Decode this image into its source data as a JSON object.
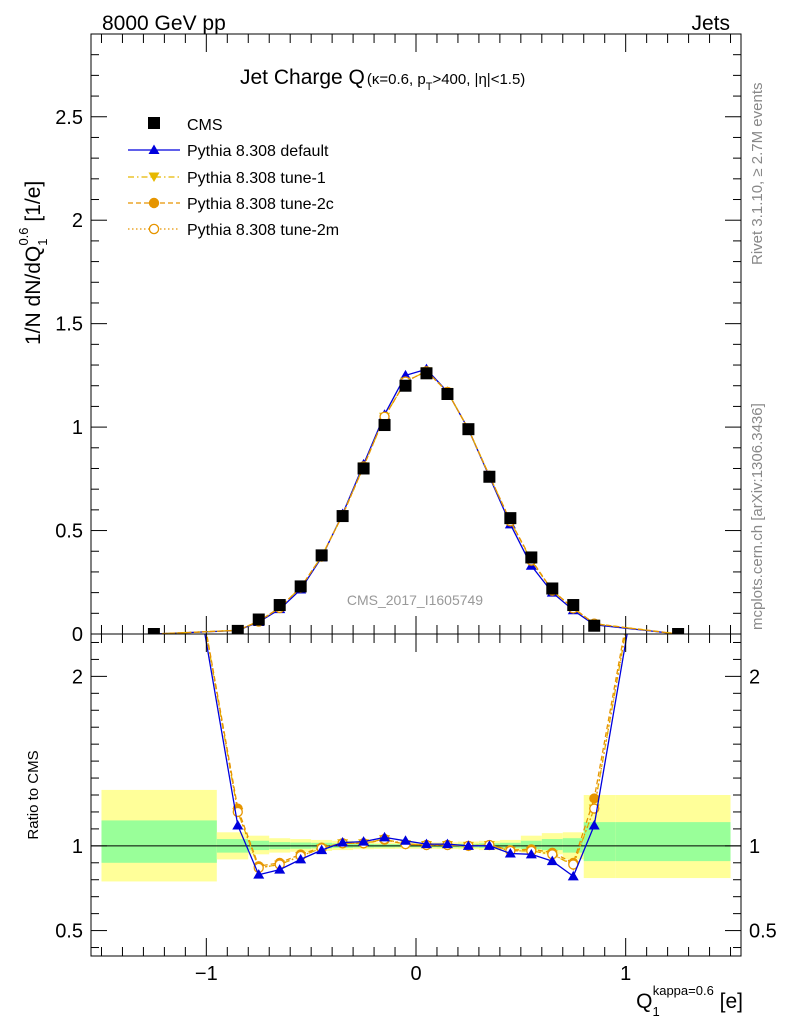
{
  "header": {
    "energy": "8000 GeV pp",
    "process": "Jets",
    "watermark": "CMS_2017_I1605749",
    "side_rivet": "Rivet 3.1.10, ≥ 2.7M events",
    "side_mcplots": "mcplots.cern.ch [arXiv:1306.3436]"
  },
  "chart_data": [
    {
      "type": "scatter",
      "title_main": "Jet Charge Q",
      "title_kappa": "(κ=0.6, p",
      "title_sub": "T",
      "title_rest": ">400, |η|<1.5)",
      "ylabel_main": "1/N dN/dQ",
      "ylabel_sub": "1",
      "ylabel_sup": "0.6",
      "ylabel_unit": " [1/e]",
      "xlim": [
        -1.55,
        1.55
      ],
      "ylim": [
        0,
        2.9
      ],
      "y_ticks": [
        "0",
        "0.5",
        "1",
        "1.5",
        "2",
        "2.5"
      ],
      "legend_position": "top-left",
      "x": [
        -1.25,
        -0.85,
        -0.75,
        -0.65,
        -0.55,
        -0.45,
        -0.35,
        -0.25,
        -0.15,
        -0.05,
        0.05,
        0.15,
        0.25,
        0.35,
        0.45,
        0.55,
        0.65,
        0.75,
        0.85,
        1.25
      ],
      "series": [
        {
          "name": "CMS",
          "color": "#000000",
          "marker": "square",
          "line": "none",
          "values": [
            0.0,
            0.015,
            0.07,
            0.14,
            0.23,
            0.38,
            0.57,
            0.8,
            1.01,
            1.2,
            1.26,
            1.16,
            0.99,
            0.76,
            0.56,
            0.37,
            0.22,
            0.14,
            0.04,
            0.0
          ]
        },
        {
          "name": "Pythia 8.308 default",
          "color": "#0000dd",
          "marker": "triangle-up",
          "line": "solid",
          "values": [
            0.0,
            0.017,
            0.058,
            0.12,
            0.215,
            0.37,
            0.58,
            0.82,
            1.06,
            1.25,
            1.28,
            1.17,
            0.99,
            0.76,
            0.53,
            0.33,
            0.2,
            0.115,
            0.045,
            0.0
          ]
        },
        {
          "name": "Pythia 8.308 tune-1",
          "color": "#e6b800",
          "marker": "triangle-down",
          "line": "dashdot",
          "values": [
            0.0,
            0.018,
            0.062,
            0.127,
            0.225,
            0.375,
            0.575,
            0.81,
            1.05,
            1.22,
            1.27,
            1.17,
            0.99,
            0.765,
            0.545,
            0.355,
            0.21,
            0.124,
            0.05,
            0.0
          ]
        },
        {
          "name": "Pythia 8.308 tune-2c",
          "color": "#e69500",
          "marker": "circle",
          "line": "dashed",
          "values": [
            0.0,
            0.018,
            0.062,
            0.127,
            0.225,
            0.375,
            0.575,
            0.81,
            1.05,
            1.22,
            1.27,
            1.17,
            0.99,
            0.765,
            0.545,
            0.36,
            0.21,
            0.126,
            0.05,
            0.0
          ]
        },
        {
          "name": "Pythia 8.308 tune-2m",
          "color": "#e69500",
          "marker": "circle-open",
          "line": "dotted",
          "values": [
            0.0,
            0.018,
            0.06,
            0.126,
            0.224,
            0.374,
            0.574,
            0.81,
            1.05,
            1.22,
            1.27,
            1.17,
            0.99,
            0.765,
            0.545,
            0.355,
            0.21,
            0.124,
            0.05,
            0.0
          ]
        }
      ]
    },
    {
      "type": "line",
      "ylabel": "Ratio to CMS",
      "xlabel_main": "Q",
      "xlabel_sub": "1",
      "xlabel_sup": "kappa=0.6",
      "xlabel_unit": " [e]",
      "xlim": [
        -1.55,
        1.55
      ],
      "ylim": [
        0.35,
        2.25
      ],
      "x_ticks": [
        "−1",
        "0",
        "1"
      ],
      "y_ticks": [
        "0.5",
        "1",
        "2"
      ],
      "reference_line": 1,
      "bands": {
        "x_edges": [
          -1.5,
          -0.95,
          -0.8,
          -0.7,
          -0.6,
          -0.5,
          -0.4,
          -0.3,
          -0.2,
          -0.1,
          0.0,
          0.1,
          0.2,
          0.3,
          0.4,
          0.5,
          0.6,
          0.7,
          0.8,
          0.95,
          1.5
        ],
        "yellow_low": [
          0.79,
          0.92,
          0.95,
          0.96,
          0.965,
          0.97,
          0.975,
          0.98,
          0.982,
          0.983,
          0.983,
          0.982,
          0.98,
          0.975,
          0.97,
          0.96,
          0.95,
          0.92,
          0.81,
          0.81
        ],
        "yellow_high": [
          1.33,
          1.08,
          1.06,
          1.045,
          1.04,
          1.035,
          1.03,
          1.025,
          1.02,
          1.02,
          1.02,
          1.02,
          1.025,
          1.03,
          1.035,
          1.06,
          1.075,
          1.08,
          1.3,
          1.3
        ],
        "green_low": [
          0.9,
          0.96,
          0.975,
          0.98,
          0.983,
          0.985,
          0.988,
          0.99,
          0.991,
          0.992,
          0.992,
          0.991,
          0.99,
          0.988,
          0.985,
          0.98,
          0.975,
          0.96,
          0.91,
          0.91
        ],
        "green_high": [
          1.15,
          1.04,
          1.03,
          1.022,
          1.02,
          1.018,
          1.015,
          1.012,
          1.01,
          1.01,
          1.01,
          1.01,
          1.012,
          1.015,
          1.018,
          1.03,
          1.04,
          1.045,
          1.14,
          1.14
        ]
      },
      "x": [
        -1.25,
        -0.85,
        -0.75,
        -0.65,
        -0.55,
        -0.45,
        -0.35,
        -0.25,
        -0.15,
        -0.05,
        0.05,
        0.15,
        0.25,
        0.35,
        0.45,
        0.55,
        0.65,
        0.75,
        0.85,
        1.25
      ],
      "series": [
        {
          "name": "Pythia 8.308 default",
          "color": "#0000dd",
          "marker": "triangle-up",
          "line": "solid",
          "values": [
            4.0,
            1.12,
            0.83,
            0.86,
            0.92,
            0.975,
            1.02,
            1.025,
            1.05,
            1.03,
            1.01,
            1.01,
            1.0,
            1.0,
            0.955,
            0.95,
            0.91,
            0.82,
            1.12,
            4.0
          ]
        },
        {
          "name": "Pythia 8.308 tune-1",
          "color": "#e6b800",
          "marker": "triangle-down",
          "line": "dashdot",
          "values": [
            4.0,
            1.2,
            0.87,
            0.89,
            0.94,
            0.985,
            1.015,
            1.015,
            1.04,
            1.01,
            1.005,
            1.005,
            1.0,
            1.005,
            0.97,
            0.97,
            0.95,
            0.885,
            1.22,
            4.0
          ]
        },
        {
          "name": "Pythia 8.308 tune-2c",
          "color": "#e69500",
          "marker": "circle",
          "line": "dashed",
          "values": [
            4.0,
            1.22,
            0.88,
            0.9,
            0.95,
            0.99,
            1.015,
            1.015,
            1.035,
            1.01,
            1.005,
            1.005,
            1.0,
            1.005,
            0.975,
            0.98,
            0.96,
            0.9,
            1.28,
            4.0
          ]
        },
        {
          "name": "Pythia 8.308 tune-2m",
          "color": "#e69500",
          "marker": "circle-open",
          "line": "dotted",
          "values": [
            4.0,
            1.2,
            0.87,
            0.89,
            0.94,
            0.985,
            1.015,
            1.015,
            1.04,
            1.01,
            1.005,
            1.005,
            1.0,
            1.005,
            0.97,
            0.97,
            0.95,
            0.89,
            1.22,
            4.0
          ]
        }
      ]
    }
  ]
}
